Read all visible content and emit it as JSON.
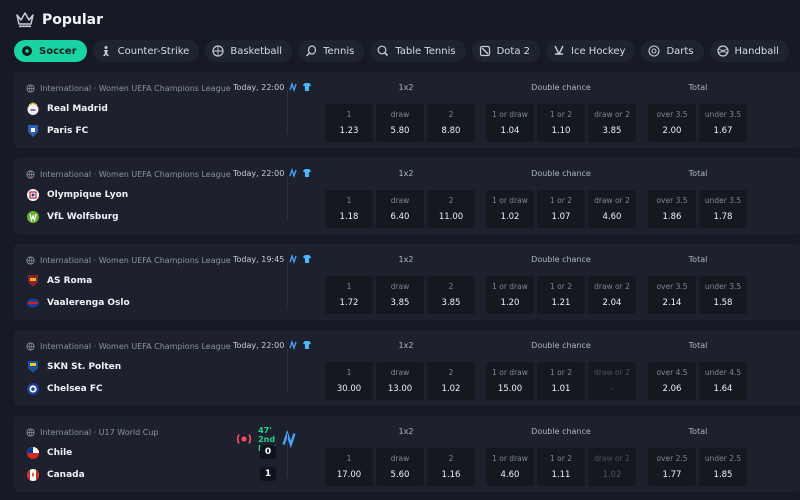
{
  "header": {
    "title": "Popular",
    "icon": "crown-icon"
  },
  "colors": {
    "accent": "#19d3a5",
    "live": "#22d48e",
    "background": "#161a24",
    "card": "#1c212d"
  },
  "tabs": [
    {
      "label": "Soccer",
      "icon": "soccer-ball-icon",
      "active": true
    },
    {
      "label": "Counter-Strike",
      "icon": "soldier-icon"
    },
    {
      "label": "Basketball",
      "icon": "basketball-icon"
    },
    {
      "label": "Tennis",
      "icon": "tennis-racket-icon"
    },
    {
      "label": "Table Tennis",
      "icon": "table-tennis-icon"
    },
    {
      "label": "Dota 2",
      "icon": "dota-icon"
    },
    {
      "label": "Ice Hockey",
      "icon": "hockey-stick-icon"
    },
    {
      "label": "Darts",
      "icon": "darts-icon"
    },
    {
      "label": "Handball",
      "icon": "handball-icon"
    }
  ],
  "market_labels": {
    "m1x2": "1x2",
    "double_chance": "Double chance",
    "total": "Total",
    "home": "1",
    "draw": "draw",
    "away": "2",
    "one_or_draw": "1 or draw",
    "one_or_two": "1 or 2",
    "draw_or_two": "draw or 2"
  },
  "events": [
    {
      "league": "International · Women UEFA Champions League",
      "time": "Today, 22:00",
      "home": "Real Madrid",
      "away": "Paris FC",
      "odds": {
        "home": "1.23",
        "draw": "5.80",
        "away": "8.80",
        "one_or_draw": "1.04",
        "one_or_two": "1.10",
        "draw_or_two": "3.85",
        "over": "2.00",
        "under": "1.67"
      },
      "over_label": "over 3.5",
      "under_label": "under 3.5"
    },
    {
      "league": "International · Women UEFA Champions League",
      "time": "Today, 22:00",
      "home": "Olympique Lyon",
      "away": "VfL Wolfsburg",
      "odds": {
        "home": "1.18",
        "draw": "6.40",
        "away": "11.00",
        "one_or_draw": "1.02",
        "one_or_two": "1.07",
        "draw_or_two": "4.60",
        "over": "1.86",
        "under": "1.78"
      },
      "over_label": "over 3.5",
      "under_label": "under 3.5"
    },
    {
      "league": "International · Women UEFA Champions League",
      "time": "Today, 19:45",
      "home": "AS Roma",
      "away": "Vaalerenga Oslo",
      "odds": {
        "home": "1.72",
        "draw": "3.85",
        "away": "3.85",
        "one_or_draw": "1.20",
        "one_or_two": "1.21",
        "draw_or_two": "2.04",
        "over": "2.14",
        "under": "1.58"
      },
      "over_label": "over 3.5",
      "under_label": "under 3.5"
    },
    {
      "league": "International · Women UEFA Champions League",
      "time": "Today, 22:00",
      "home": "SKN St. Polten",
      "away": "Chelsea FC",
      "odds": {
        "home": "30.00",
        "draw": "13.00",
        "away": "1.02",
        "one_or_draw": "15.00",
        "one_or_two": "1.01",
        "draw_or_two": "-",
        "over": "2.06",
        "under": "1.64"
      },
      "over_label": "over 4.5",
      "under_label": "under 4.5"
    },
    {
      "league": "International · U17 World Cup",
      "live": "47' 2nd half",
      "home": "Chile",
      "away": "Canada",
      "home_score": "0",
      "away_score": "1",
      "odds": {
        "home": "17.00",
        "draw": "5.60",
        "away": "1.16",
        "one_or_draw": "4.60",
        "one_or_two": "1.11",
        "draw_or_two": "1.02",
        "over": "1.77",
        "under": "1.85"
      },
      "over_label": "over 2.5",
      "under_label": "under 2.5"
    }
  ]
}
